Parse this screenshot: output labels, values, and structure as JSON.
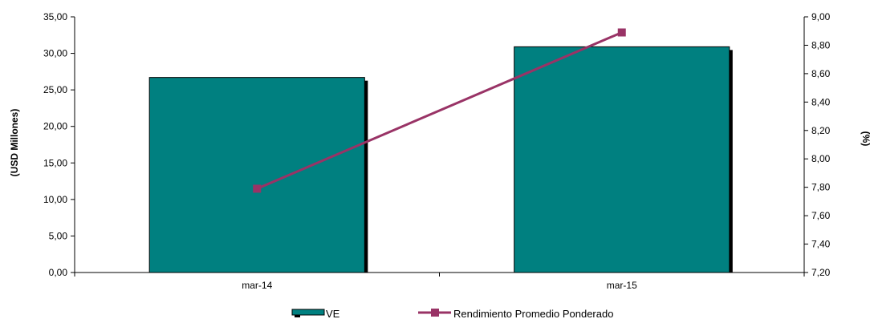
{
  "chart_data": {
    "type": "bar",
    "categories": [
      "mar-14",
      "mar-15"
    ],
    "series": [
      {
        "name": "VE",
        "type": "bar",
        "axis": "left",
        "values": [
          26.7,
          30.9
        ],
        "color": "#008080"
      },
      {
        "name": "Rendimiento Promedio Ponderado",
        "type": "line",
        "axis": "right",
        "values": [
          7.79,
          8.89
        ],
        "color": "#993366",
        "marker": "square"
      }
    ],
    "ylabel": "(USD Millones)",
    "y2label": "(%)",
    "ylim": [
      0,
      35
    ],
    "y2lim": [
      7.2,
      9.0
    ],
    "yticks": [
      "0,00",
      "5,00",
      "10,00",
      "15,00",
      "20,00",
      "25,00",
      "30,00",
      "35,00"
    ],
    "y2ticks": [
      "7,20",
      "7,40",
      "7,60",
      "7,80",
      "8,00",
      "8,20",
      "8,40",
      "8,60",
      "8,80",
      "9,00"
    ],
    "grid": false,
    "legend_position": "bottom",
    "bar_shadow_color": "#000000"
  }
}
